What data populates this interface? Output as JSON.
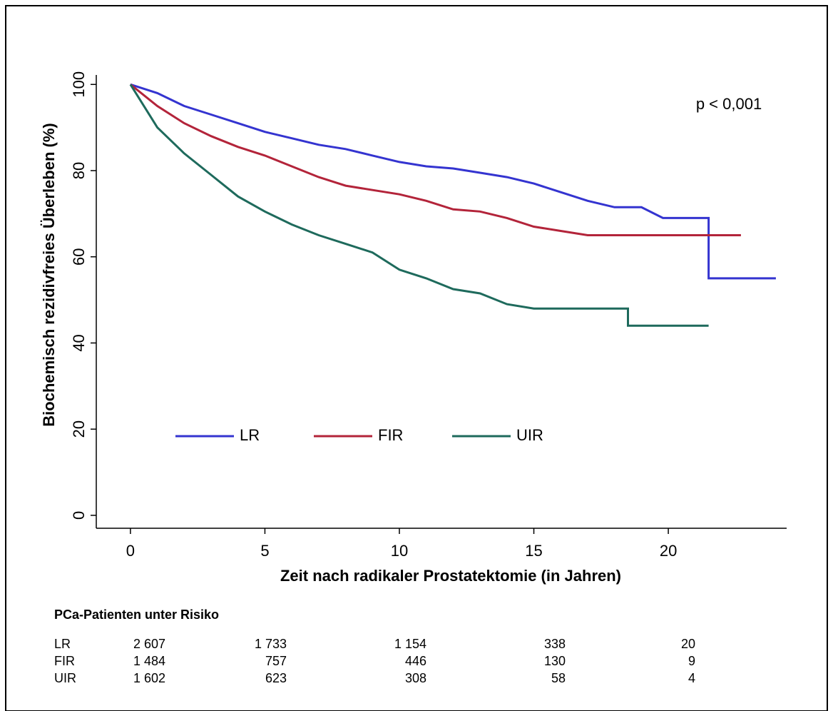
{
  "chart_data": {
    "type": "line",
    "step": true,
    "y_label": "Biochemisch rezidivfreies Überleben (%)",
    "x_label": "Zeit nach radikaler Prostatektomie (in Jahren)",
    "annotation": "p < 0,001",
    "xlim": [
      -1.27,
      24.4
    ],
    "ylim": [
      -3,
      102.2
    ],
    "xticks": [
      0,
      5,
      10,
      15,
      20
    ],
    "yticks": [
      0,
      20,
      40,
      60,
      80,
      100
    ],
    "legend": "lower left",
    "series": [
      {
        "name": "LR",
        "color": "#3434d0",
        "x": [
          0,
          1,
          2,
          3,
          4,
          5,
          6,
          7,
          8,
          9,
          10,
          11,
          12,
          13,
          14,
          15,
          16,
          17,
          18,
          19,
          19.8,
          21.5,
          21.5,
          24
        ],
        "values": [
          100,
          98,
          95,
          93,
          91,
          89,
          87.5,
          86,
          85,
          83.5,
          82,
          81,
          80.5,
          79.5,
          78.5,
          77,
          75,
          73,
          71.5,
          71.5,
          69,
          69,
          55,
          55
        ]
      },
      {
        "name": "FIR",
        "color": "#b3243a",
        "x": [
          0,
          1,
          2,
          3,
          4,
          5,
          6,
          7,
          8,
          9,
          10,
          11,
          12,
          13,
          14,
          15,
          16,
          17,
          18,
          20,
          22.7
        ],
        "values": [
          100,
          95,
          91,
          88,
          85.5,
          83.5,
          81,
          78.5,
          76.5,
          75.5,
          74.5,
          73,
          71,
          70.5,
          69,
          67,
          66,
          65,
          65,
          65,
          65
        ]
      },
      {
        "name": "UIR",
        "color": "#1e6a5c",
        "x": [
          0,
          1,
          2,
          3,
          4,
          5,
          6,
          7,
          8,
          9,
          10,
          11,
          12,
          13,
          14,
          15,
          17,
          18.5,
          18.5,
          21.5
        ],
        "values": [
          100,
          90,
          84,
          79,
          74,
          70.5,
          67.5,
          65,
          63,
          61,
          57,
          55,
          52.5,
          51.5,
          49,
          48,
          48,
          48,
          44,
          44
        ]
      }
    ]
  },
  "risk_table": {
    "title": "PCa-Patienten unter Risiko",
    "rows": [
      {
        "label": "LR",
        "values": [
          "2 607",
          "1 733",
          "1 154",
          "338",
          "20"
        ]
      },
      {
        "label": "FIR",
        "values": [
          "1 484",
          "757",
          "446",
          "130",
          "9"
        ]
      },
      {
        "label": "UIR",
        "values": [
          "1 602",
          "623",
          "308",
          "58",
          "4"
        ]
      }
    ]
  }
}
